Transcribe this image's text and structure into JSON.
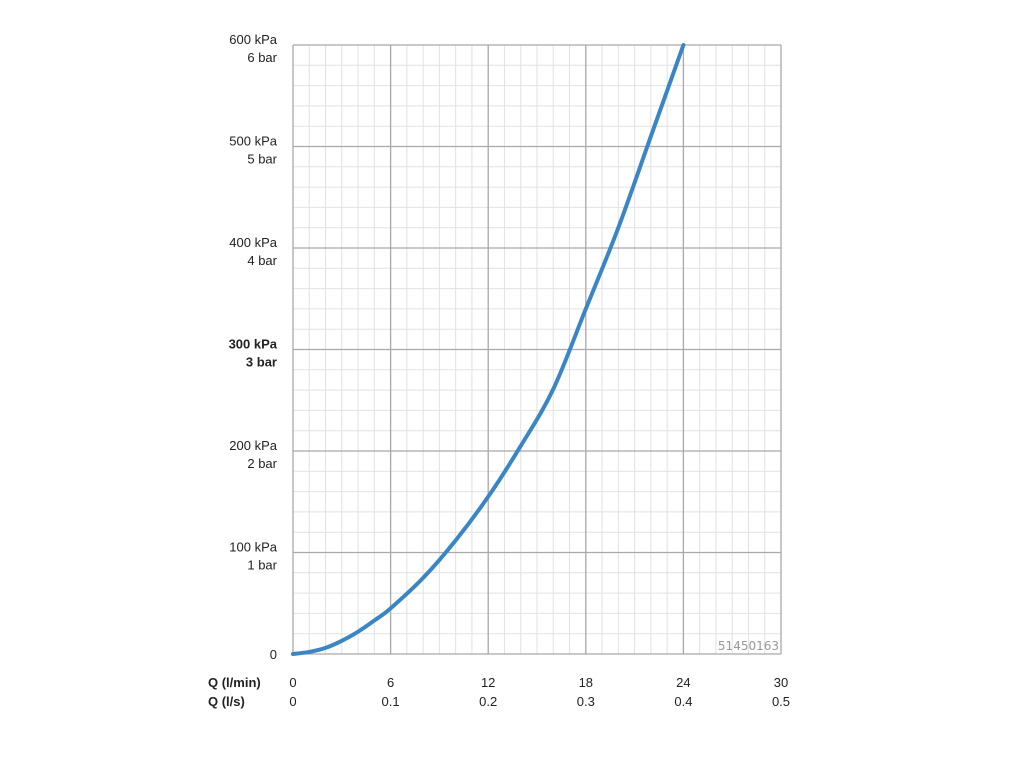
{
  "chart_data": {
    "type": "line",
    "xlabel_primary": "Q (l/min)",
    "xlabel_secondary": "Q (l/s)",
    "xlim": [
      0,
      30
    ],
    "ylim": [
      0,
      600
    ],
    "x_ticks": [
      "0",
      "6",
      "12",
      "18",
      "24",
      "30"
    ],
    "x_ticks_secondary": [
      "0",
      "0.1",
      "0.2",
      "0.3",
      "0.4",
      "0.5"
    ],
    "y_ticks_kpa": [
      "0",
      "100 kPa",
      "200 kPa",
      "300 kPa",
      "400 kPa",
      "500 kPa",
      "600 kPa"
    ],
    "y_ticks_bar": [
      "",
      "1 bar",
      "2 bar",
      "3 bar",
      "4 bar",
      "5 bar",
      "6 bar"
    ],
    "highlighted_y_tick": "300 kPa",
    "grid": true,
    "code": "51450163",
    "series": [
      {
        "color": "#3a86c4",
        "x": [
          0,
          1,
          2,
          3,
          4,
          5,
          6,
          8,
          10,
          12,
          14,
          16,
          18,
          20,
          22,
          24
        ],
        "y": [
          0,
          2,
          6,
          13,
          22,
          33,
          45,
          75,
          112,
          155,
          205,
          261,
          340,
          420,
          510,
          600
        ]
      }
    ]
  }
}
